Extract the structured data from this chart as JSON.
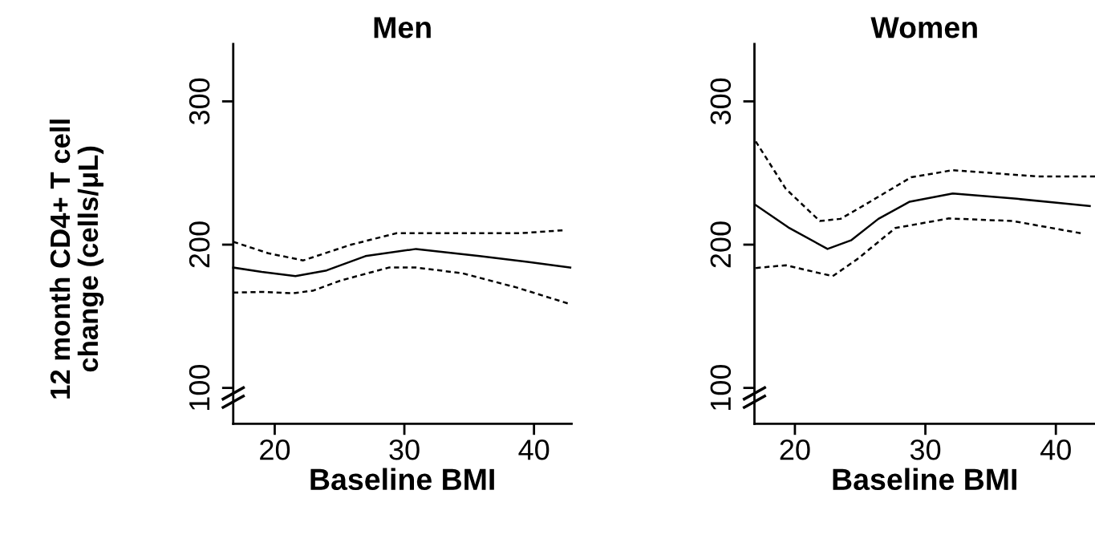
{
  "chart_data": [
    {
      "type": "line",
      "title": "Men",
      "xlabel": "Baseline BMI",
      "ylabel": "12 month CD4+ T cell\nchange (cells/μL)",
      "xlim": [
        16.8,
        42.9
      ],
      "ylim": [
        75,
        340
      ],
      "xticks": [
        20,
        30,
        40
      ],
      "yticks": [
        100,
        200,
        300
      ],
      "grid": false,
      "legend": false,
      "marker": "none",
      "series": [
        {
          "color": "#000000",
          "line_style": "solid",
          "x": [
            16.8,
            19.0,
            21.6,
            24.0,
            27.0,
            30.9,
            35.8,
            39.5,
            42.8
          ],
          "values": [
            184,
            181,
            178,
            182,
            192,
            197,
            192,
            188,
            184
          ]
        },
        {
          "color": "#000000",
          "line_style": "dashed",
          "x": [
            16.8,
            19.5,
            22.2,
            25.9,
            29.4,
            34.8,
            39.0,
            42.2
          ],
          "values": [
            202,
            194,
            189,
            200,
            208,
            208,
            208,
            210
          ]
        },
        {
          "color": "#000000",
          "line_style": "dashed",
          "x": [
            16.8,
            19.0,
            21.4,
            23.0,
            25.1,
            28.8,
            30.9,
            34.5,
            38.7,
            42.6
          ],
          "values": [
            166.5,
            167,
            166,
            168,
            175,
            184,
            184,
            180,
            170,
            159
          ]
        }
      ]
    },
    {
      "type": "line",
      "title": "Women",
      "xlabel": "Baseline BMI",
      "xlim": [
        16.9,
        43.0
      ],
      "ylim": [
        75,
        340
      ],
      "xticks": [
        20,
        30,
        40
      ],
      "yticks": [
        100,
        200,
        300
      ],
      "grid": false,
      "legend": false,
      "marker": "none",
      "series": [
        {
          "color": "#000000",
          "line_style": "solid",
          "x": [
            17.0,
            19.5,
            22.5,
            24.3,
            26.4,
            28.8,
            32.1,
            37.0,
            42.6
          ],
          "values": [
            227.6,
            212,
            197,
            203,
            218,
            230,
            235.7,
            232,
            227
          ]
        },
        {
          "color": "#000000",
          "line_style": "dashed",
          "x": [
            17.0,
            19.3,
            21.9,
            23.5,
            25.4,
            28.9,
            32.1,
            38.6,
            43.0
          ],
          "values": [
            272,
            239,
            216.5,
            218,
            228,
            247,
            252,
            247.6,
            247.6
          ]
        },
        {
          "color": "#000000",
          "line_style": "dashed",
          "x": [
            17.0,
            19.3,
            22.9,
            24.8,
            27.7,
            31.8,
            36.7,
            41.9
          ],
          "values": [
            183.7,
            185.6,
            178,
            190,
            211.6,
            218.3,
            216.5,
            208
          ]
        }
      ]
    }
  ]
}
